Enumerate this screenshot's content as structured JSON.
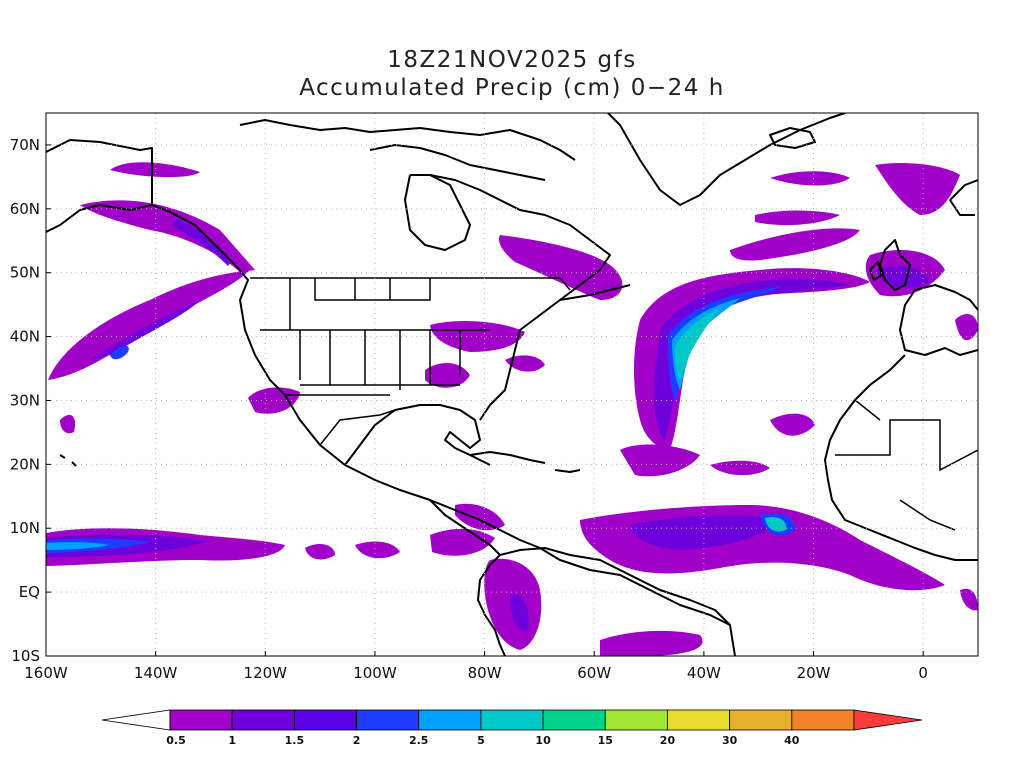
{
  "title": {
    "line1": "18Z21NOV2025 gfs",
    "line2": "Accumulated Precip (cm) 0−24 h"
  },
  "map": {
    "lon_range": [
      -160,
      10
    ],
    "lat_range": [
      -10,
      75
    ],
    "lat_labels": [
      {
        "lat": 70,
        "text": "70N"
      },
      {
        "lat": 60,
        "text": "60N"
      },
      {
        "lat": 50,
        "text": "50N"
      },
      {
        "lat": 40,
        "text": "40N"
      },
      {
        "lat": 30,
        "text": "30N"
      },
      {
        "lat": 20,
        "text": "20N"
      },
      {
        "lat": 10,
        "text": "10N"
      },
      {
        "lat": 0,
        "text": "EQ"
      },
      {
        "lat": -10,
        "text": "10S"
      }
    ],
    "lon_labels": [
      {
        "lon": -160,
        "text": "160W"
      },
      {
        "lon": -140,
        "text": "140W"
      },
      {
        "lon": -120,
        "text": "120W"
      },
      {
        "lon": -100,
        "text": "100W"
      },
      {
        "lon": -80,
        "text": "80W"
      },
      {
        "lon": -60,
        "text": "60W"
      },
      {
        "lon": -40,
        "text": "40W"
      },
      {
        "lon": -20,
        "text": "20W"
      },
      {
        "lon": 0,
        "text": "0"
      }
    ],
    "grid_dotted": true,
    "coastline_color": "#000000",
    "precip_colors": {
      "lvl1": "#a000c8",
      "lvl2": "#6e00dc",
      "lvl3": "#1e3cff",
      "lvl4": "#00a0ff",
      "lvl5": "#00c8c8"
    }
  },
  "colorbar": {
    "levels": [
      "0.5",
      "1",
      "1.5",
      "2",
      "2.5",
      "5",
      "10",
      "15",
      "20",
      "30",
      "40"
    ],
    "colors": [
      "#ffffff",
      "#a000c8",
      "#6e00dc",
      "#5a00e6",
      "#1e3cff",
      "#00a0ff",
      "#00c8c8",
      "#00d28c",
      "#a0e632",
      "#e6dc32",
      "#e6af2d",
      "#f08228",
      "#fa3c3c"
    ]
  }
}
